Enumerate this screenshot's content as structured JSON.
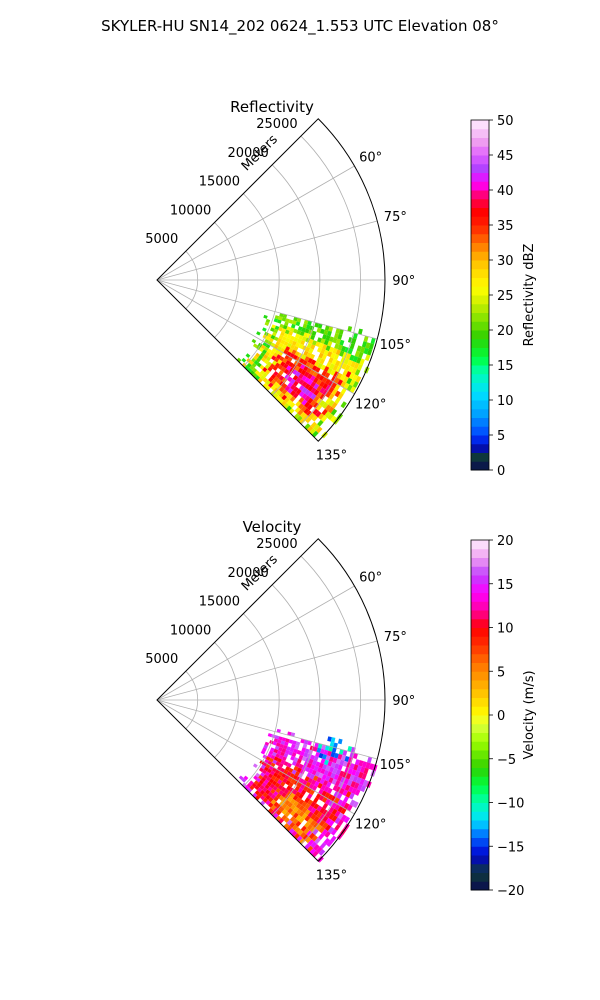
{
  "figure": {
    "suptitle": "SKYLER-HU  SN14_202  0624_1.553 UTC Elevation 08°"
  },
  "chart_data": [
    {
      "type": "heatmap",
      "projection": "polar-sector",
      "title": "Reflectivity",
      "radial_axis_label": "Meters",
      "radial_ticks": [
        5000,
        10000,
        15000,
        20000,
        25000
      ],
      "radial_tick_labels": [
        "5000",
        "10000",
        "15000",
        "20000",
        "25000"
      ],
      "rlim": [
        0,
        28000
      ],
      "theta_range_deg": [
        45,
        135
      ],
      "theta_ticks_deg": [
        60,
        75,
        90,
        105,
        120,
        135
      ],
      "theta_tick_labels": [
        "60°",
        "75°",
        "90°",
        "105°",
        "120°",
        "135°"
      ],
      "grid": true,
      "colorbar": {
        "label": "Reflectivity dBZ",
        "min": 0,
        "max": 50,
        "ticks": [
          0,
          5,
          10,
          15,
          20,
          25,
          30,
          35,
          40,
          45,
          50
        ],
        "tick_labels": [
          "0",
          "5",
          "10",
          "15",
          "20",
          "25",
          "30",
          "35",
          "40",
          "45",
          "50"
        ],
        "stops": [
          [
            0,
            "#0a0a50"
          ],
          [
            2,
            "#0e3a3a"
          ],
          [
            3.5,
            "#0000d0"
          ],
          [
            5,
            "#0044ff"
          ],
          [
            8,
            "#00a0ff"
          ],
          [
            11,
            "#00e0ff"
          ],
          [
            14,
            "#00ffb0"
          ],
          [
            16,
            "#00ff40"
          ],
          [
            19,
            "#30d000"
          ],
          [
            21,
            "#70e000"
          ],
          [
            24,
            "#d0f000"
          ],
          [
            26,
            "#ffff00"
          ],
          [
            29,
            "#ffd000"
          ],
          [
            31,
            "#ffa000"
          ],
          [
            33,
            "#ff6000"
          ],
          [
            35,
            "#ff2000"
          ],
          [
            37,
            "#ff0000"
          ],
          [
            39,
            "#ff0060"
          ],
          [
            41,
            "#ff00ff"
          ],
          [
            43,
            "#b040ff"
          ],
          [
            45,
            "#e060ff"
          ],
          [
            47,
            "#f0a0f0"
          ],
          [
            50,
            "#fff0ff"
          ]
        ]
      },
      "echo_regions": [
        {
          "r": [
            14500,
            27500
          ],
          "theta": [
            105,
            135
          ],
          "value": 20
        },
        {
          "r": [
            15500,
            27000
          ],
          "theta": [
            110,
            134
          ],
          "value": 27
        },
        {
          "r": [
            17500,
            25500
          ],
          "theta": [
            117,
            131
          ],
          "value": 35
        },
        {
          "r": [
            19500,
            24000
          ],
          "theta": [
            121,
            128
          ],
          "value": 40
        }
      ]
    },
    {
      "type": "heatmap",
      "projection": "polar-sector",
      "title": "Velocity",
      "radial_axis_label": "Meters",
      "radial_ticks": [
        5000,
        10000,
        15000,
        20000,
        25000
      ],
      "radial_tick_labels": [
        "5000",
        "10000",
        "15000",
        "20000",
        "25000"
      ],
      "rlim": [
        0,
        28000
      ],
      "theta_range_deg": [
        45,
        135
      ],
      "theta_ticks_deg": [
        60,
        75,
        90,
        105,
        120,
        135
      ],
      "theta_tick_labels": [
        "60°",
        "75°",
        "90°",
        "105°",
        "120°",
        "135°"
      ],
      "grid": true,
      "colorbar": {
        "label": "Velocity (m/s)",
        "min": -20,
        "max": 20,
        "ticks": [
          -20,
          -15,
          -10,
          -5,
          0,
          5,
          10,
          15,
          20
        ],
        "tick_labels": [
          "−20",
          "−15",
          "−10",
          "−5",
          "0",
          "5",
          "10",
          "15",
          "20"
        ],
        "stops": [
          [
            -20,
            "#0a0a50"
          ],
          [
            -18,
            "#0e3a3a"
          ],
          [
            -16,
            "#0000d0"
          ],
          [
            -14,
            "#0060ff"
          ],
          [
            -12,
            "#00e0ff"
          ],
          [
            -10,
            "#00ffb0"
          ],
          [
            -8,
            "#00ff40"
          ],
          [
            -6,
            "#30d000"
          ],
          [
            -3,
            "#a0ff00"
          ],
          [
            -1,
            "#e0ff40"
          ],
          [
            0,
            "#ffff00"
          ],
          [
            2,
            "#ffd000"
          ],
          [
            4,
            "#ffa000"
          ],
          [
            6,
            "#ff7000"
          ],
          [
            8,
            "#ff3000"
          ],
          [
            10,
            "#ff0000"
          ],
          [
            12,
            "#ff00a0"
          ],
          [
            14,
            "#ff00ff"
          ],
          [
            16,
            "#c040ff"
          ],
          [
            18,
            "#f0a0f0"
          ],
          [
            20,
            "#fff0ff"
          ]
        ]
      },
      "echo_regions": [
        {
          "r": [
            14500,
            27500
          ],
          "theta": [
            105,
            135
          ],
          "value": 14
        },
        {
          "r": [
            15500,
            25500
          ],
          "theta": [
            116,
            133
          ],
          "value": 10
        },
        {
          "r": [
            19000,
            25500
          ],
          "theta": [
            125,
            133
          ],
          "value": 6
        },
        {
          "r": [
            20500,
            23500
          ],
          "theta": [
            103,
            108
          ],
          "value": -12
        }
      ]
    }
  ]
}
